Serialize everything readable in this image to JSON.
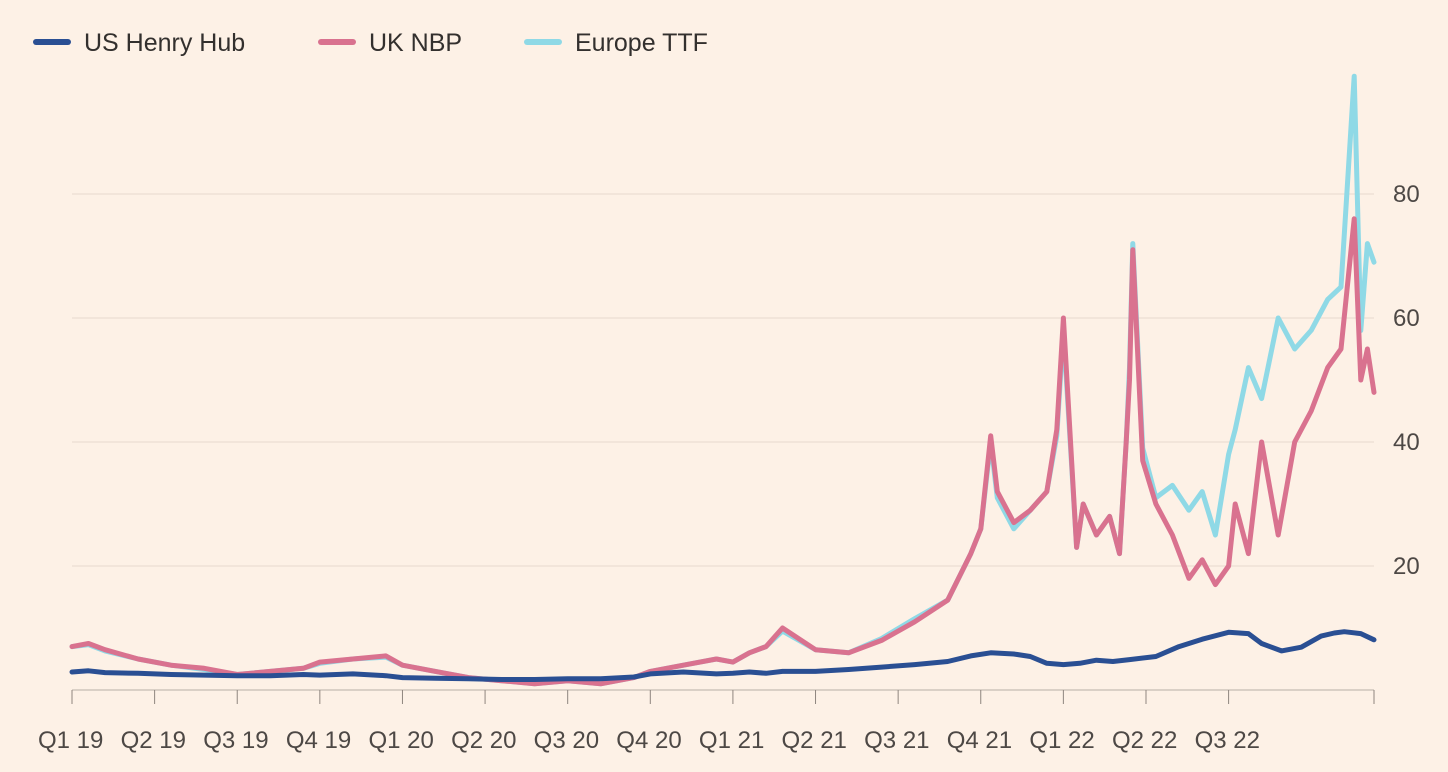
{
  "chart_data": {
    "type": "line",
    "title": "",
    "xlabel": "",
    "ylabel": "",
    "ylim": [
      0,
      100
    ],
    "y_ticks": [
      20,
      40,
      60,
      80
    ],
    "y_axis_side": "right",
    "grid": true,
    "legend_position": "top-left",
    "colors": {
      "background": "#fdf1e6",
      "grid": "#e6d9ce"
    },
    "x_range": [
      2019.0,
      2022.94
    ],
    "categories": [
      "Q1 19",
      "Q2 19",
      "Q3 19",
      "Q4 19",
      "Q1 20",
      "Q2 20",
      "Q3 20",
      "Q4 20",
      "Q1 21",
      "Q2 21",
      "Q3 21",
      "Q4 21",
      "Q1 22",
      "Q2 22",
      "Q3 22"
    ],
    "category_positions": [
      2019.0,
      2019.25,
      2019.5,
      2019.75,
      2020.0,
      2020.25,
      2020.5,
      2020.75,
      2021.0,
      2021.25,
      2021.5,
      2021.75,
      2022.0,
      2022.25,
      2022.5
    ],
    "series": [
      {
        "name": "US Henry Hub",
        "color": "#2a4f93",
        "x": [
          2019.0,
          2019.05,
          2019.1,
          2019.2,
          2019.3,
          2019.4,
          2019.5,
          2019.6,
          2019.7,
          2019.75,
          2019.85,
          2019.95,
          2020.0,
          2020.1,
          2020.2,
          2020.3,
          2020.4,
          2020.5,
          2020.6,
          2020.7,
          2020.75,
          2020.85,
          2020.95,
          2021.0,
          2021.05,
          2021.1,
          2021.15,
          2021.25,
          2021.35,
          2021.45,
          2021.55,
          2021.65,
          2021.72,
          2021.78,
          2021.85,
          2021.9,
          2021.95,
          2022.0,
          2022.05,
          2022.1,
          2022.15,
          2022.2,
          2022.28,
          2022.35,
          2022.42,
          2022.5,
          2022.56,
          2022.6,
          2022.66,
          2022.72,
          2022.78,
          2022.82,
          2022.85,
          2022.9,
          2022.94
        ],
        "values": [
          2.9,
          3.1,
          2.8,
          2.7,
          2.5,
          2.4,
          2.3,
          2.3,
          2.5,
          2.4,
          2.6,
          2.3,
          2.0,
          1.9,
          1.8,
          1.7,
          1.7,
          1.8,
          1.8,
          2.1,
          2.6,
          2.9,
          2.6,
          2.7,
          2.9,
          2.7,
          3.0,
          3.0,
          3.3,
          3.7,
          4.1,
          4.6,
          5.5,
          6.0,
          5.8,
          5.4,
          4.3,
          4.1,
          4.3,
          4.8,
          4.6,
          4.9,
          5.4,
          7.0,
          8.2,
          9.3,
          9.1,
          7.5,
          6.3,
          6.9,
          8.7,
          9.2,
          9.4,
          9.1,
          8.1
        ]
      },
      {
        "name": "UK NBP",
        "color": "#d9728f",
        "x": [
          2019.0,
          2019.05,
          2019.1,
          2019.2,
          2019.3,
          2019.4,
          2019.5,
          2019.6,
          2019.7,
          2019.75,
          2019.85,
          2019.95,
          2020.0,
          2020.1,
          2020.2,
          2020.3,
          2020.4,
          2020.5,
          2020.6,
          2020.7,
          2020.75,
          2020.85,
          2020.95,
          2021.0,
          2021.05,
          2021.1,
          2021.15,
          2021.25,
          2021.35,
          2021.45,
          2021.55,
          2021.65,
          2021.72,
          2021.75,
          2021.78,
          2021.8,
          2021.85,
          2021.9,
          2021.95,
          2021.98,
          2022.0,
          2022.04,
          2022.06,
          2022.1,
          2022.14,
          2022.17,
          2022.19,
          2022.2,
          2022.21,
          2022.24,
          2022.28,
          2022.33,
          2022.38,
          2022.42,
          2022.46,
          2022.5,
          2022.52,
          2022.56,
          2022.6,
          2022.65,
          2022.7,
          2022.75,
          2022.8,
          2022.84,
          2022.88,
          2022.9,
          2022.92,
          2022.94
        ],
        "values": [
          7.0,
          7.5,
          6.5,
          5.0,
          4.0,
          3.5,
          2.5,
          3.0,
          3.5,
          4.5,
          5.0,
          5.5,
          4.0,
          3.0,
          2.0,
          1.5,
          1.0,
          1.5,
          1.0,
          2.0,
          3.0,
          4.0,
          5.0,
          4.5,
          6.0,
          7.0,
          10.0,
          6.5,
          6.0,
          8.0,
          11.0,
          14.5,
          22.0,
          26.0,
          41.0,
          32.0,
          27.0,
          29.0,
          32.0,
          42.0,
          60.0,
          23.0,
          30.0,
          25.0,
          28.0,
          22.0,
          40.0,
          50.0,
          71.0,
          37.0,
          30.0,
          25.0,
          18.0,
          21.0,
          17.0,
          20.0,
          30.0,
          22.0,
          40.0,
          25.0,
          40.0,
          45.0,
          52.0,
          55.0,
          76.0,
          50.0,
          55.0,
          48.0
        ]
      },
      {
        "name": "Europe TTF",
        "color": "#8fd9e6",
        "x": [
          2019.0,
          2019.05,
          2019.1,
          2019.2,
          2019.3,
          2019.4,
          2019.5,
          2019.6,
          2019.7,
          2019.75,
          2019.85,
          2019.95,
          2020.0,
          2020.1,
          2020.2,
          2020.3,
          2020.4,
          2020.5,
          2020.6,
          2020.7,
          2020.75,
          2020.85,
          2020.95,
          2021.0,
          2021.05,
          2021.1,
          2021.15,
          2021.25,
          2021.35,
          2021.45,
          2021.55,
          2021.65,
          2021.72,
          2021.75,
          2021.78,
          2021.8,
          2021.85,
          2021.9,
          2021.95,
          2021.98,
          2022.0,
          2022.04,
          2022.06,
          2022.1,
          2022.14,
          2022.17,
          2022.19,
          2022.2,
          2022.21,
          2022.24,
          2022.28,
          2022.33,
          2022.38,
          2022.42,
          2022.46,
          2022.5,
          2022.52,
          2022.56,
          2022.6,
          2022.65,
          2022.7,
          2022.75,
          2022.8,
          2022.84,
          2022.88,
          2022.9,
          2022.92,
          2022.94
        ],
        "values": [
          7.0,
          7.3,
          6.3,
          5.0,
          4.0,
          3.3,
          2.5,
          3.0,
          3.5,
          4.3,
          5.0,
          5.3,
          4.0,
          3.0,
          2.0,
          1.5,
          1.0,
          1.5,
          1.0,
          2.0,
          3.0,
          4.0,
          5.0,
          4.5,
          6.0,
          7.0,
          9.5,
          6.5,
          6.0,
          8.3,
          11.5,
          14.5,
          22.0,
          26.0,
          40.0,
          31.0,
          26.0,
          29.0,
          32.0,
          41.0,
          58.0,
          23.0,
          30.0,
          25.0,
          28.0,
          22.0,
          40.0,
          52.0,
          72.0,
          39.0,
          31.0,
          33.0,
          29.0,
          32.0,
          25.0,
          38.0,
          42.0,
          52.0,
          47.0,
          60.0,
          55.0,
          58.0,
          63.0,
          65.0,
          99.0,
          58.0,
          72.0,
          69.0
        ]
      }
    ]
  }
}
